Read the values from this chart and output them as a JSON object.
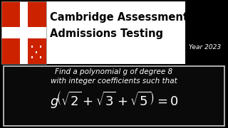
{
  "bg_color": "#000000",
  "header_bg": "#ffffff",
  "header_text_line1": "Cambridge Assessment",
  "header_text_line2": "Admissions Testing",
  "header_fontsize": 10.5,
  "year_text": "Year 2023",
  "year_color": "#ffffff",
  "year_fontsize": 6.5,
  "body_text_line1": "Find a polynomial g of degree 8",
  "body_text_line2": "with integer coefficients such that",
  "body_fontsize": 7.5,
  "math_expr": "$g\\!\\left(\\sqrt{2}+\\sqrt{3}+\\sqrt{5}\\right)=0$",
  "math_fontsize": 13,
  "box_facecolor": "#0a0a0a",
  "box_edgecolor": "#cccccc",
  "body_text_color": "#ffffff",
  "header_text_color": "#000000",
  "shield_red": "#cc2200",
  "shield_gold": "#d4a017"
}
